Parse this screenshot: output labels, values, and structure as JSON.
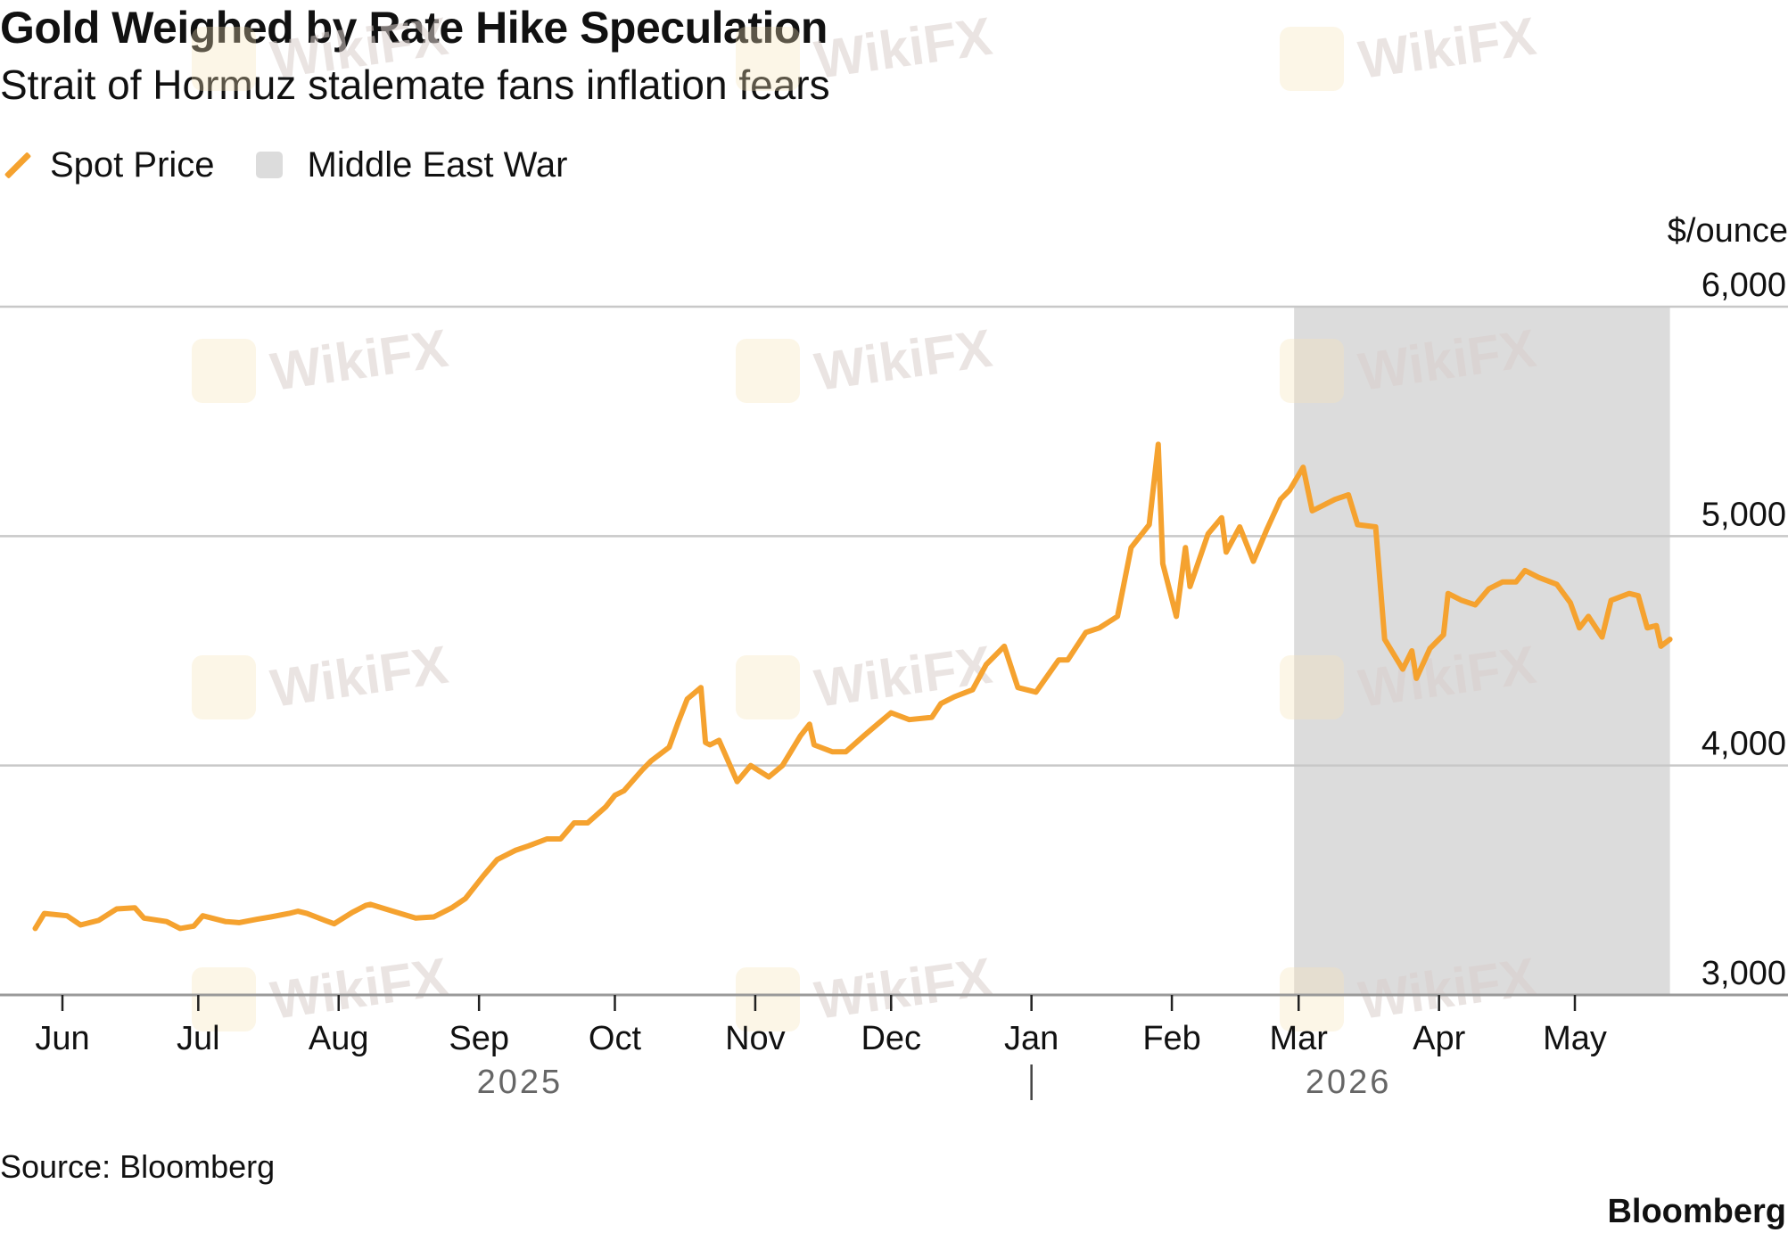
{
  "title": "Gold Weighed by Rate Hike Speculation",
  "subtitle": "Strait of Hormuz stalemate fans inflation fears",
  "legend": {
    "series_label": "Spot Price",
    "shade_label": "Middle East War"
  },
  "source": "Source: Bloomberg",
  "brand": "Bloomberg",
  "watermark": "WikiFX",
  "colors": {
    "series": "#f5a22f",
    "shade": "#dcdcdc",
    "grid": "#c8c8c8",
    "watermark": "#d9cfcc"
  },
  "chart_data": {
    "type": "line",
    "title": "Gold Weighed by Rate Hike Speculation",
    "subtitle": "Strait of Hormuz stalemate fans inflation fears",
    "ylabel": "$/ounce",
    "ylim": [
      3000,
      6000
    ],
    "yticks": [
      {
        "value": 3000,
        "label": "3,000"
      },
      {
        "value": 4000,
        "label": "4,000"
      },
      {
        "value": 5000,
        "label": "5,000"
      },
      {
        "value": 6000,
        "label": "6,000"
      }
    ],
    "xlim": [
      "2025-05-23",
      "2026-05-23"
    ],
    "xticks": [
      {
        "date": "2025-06-01",
        "label": "Jun"
      },
      {
        "date": "2025-07-01",
        "label": "Jul"
      },
      {
        "date": "2025-08-01",
        "label": "Aug"
      },
      {
        "date": "2025-09-01",
        "label": "Sep"
      },
      {
        "date": "2025-10-01",
        "label": "Oct"
      },
      {
        "date": "2025-11-01",
        "label": "Nov"
      },
      {
        "date": "2025-12-01",
        "label": "Dec"
      },
      {
        "date": "2026-01-01",
        "label": "Jan"
      },
      {
        "date": "2026-02-01",
        "label": "Feb"
      },
      {
        "date": "2026-03-01",
        "label": "Mar"
      },
      {
        "date": "2026-04-01",
        "label": "Apr"
      },
      {
        "date": "2026-05-01",
        "label": "May"
      }
    ],
    "year_labels": [
      {
        "label": "2025",
        "date": "2025-09-10"
      },
      {
        "label": "2026",
        "date": "2026-03-12"
      }
    ],
    "year_divider": "2026-01-01",
    "grid": true,
    "legend_position": "top-left",
    "shaded_regions": [
      {
        "name": "Middle East War",
        "start": "2026-02-28",
        "end": "2026-05-22"
      }
    ],
    "series": [
      {
        "name": "Spot Price",
        "points": [
          [
            "2025-05-26",
            3290
          ],
          [
            "2025-05-28",
            3355
          ],
          [
            "2025-06-02",
            3345
          ],
          [
            "2025-06-05",
            3305
          ],
          [
            "2025-06-09",
            3325
          ],
          [
            "2025-06-13",
            3375
          ],
          [
            "2025-06-17",
            3380
          ],
          [
            "2025-06-19",
            3335
          ],
          [
            "2025-06-24",
            3320
          ],
          [
            "2025-06-27",
            3290
          ],
          [
            "2025-06-30",
            3300
          ],
          [
            "2025-07-02",
            3345
          ],
          [
            "2025-07-07",
            3320
          ],
          [
            "2025-07-10",
            3315
          ],
          [
            "2025-07-14",
            3330
          ],
          [
            "2025-07-17",
            3340
          ],
          [
            "2025-07-21",
            3355
          ],
          [
            "2025-07-23",
            3365
          ],
          [
            "2025-07-25",
            3355
          ],
          [
            "2025-07-29",
            3325
          ],
          [
            "2025-07-31",
            3310
          ],
          [
            "2025-08-04",
            3360
          ],
          [
            "2025-08-07",
            3390
          ],
          [
            "2025-08-08",
            3395
          ],
          [
            "2025-08-13",
            3365
          ],
          [
            "2025-08-18",
            3335
          ],
          [
            "2025-08-22",
            3340
          ],
          [
            "2025-08-26",
            3380
          ],
          [
            "2025-08-29",
            3420
          ],
          [
            "2025-09-02",
            3520
          ],
          [
            "2025-09-05",
            3590
          ],
          [
            "2025-09-09",
            3630
          ],
          [
            "2025-09-12",
            3650
          ],
          [
            "2025-09-16",
            3680
          ],
          [
            "2025-09-19",
            3680
          ],
          [
            "2025-09-22",
            3750
          ],
          [
            "2025-09-25",
            3750
          ],
          [
            "2025-09-29",
            3820
          ],
          [
            "2025-10-01",
            3870
          ],
          [
            "2025-10-03",
            3890
          ],
          [
            "2025-10-07",
            3980
          ],
          [
            "2025-10-09",
            4020
          ],
          [
            "2025-10-13",
            4080
          ],
          [
            "2025-10-15",
            4190
          ],
          [
            "2025-10-17",
            4290
          ],
          [
            "2025-10-20",
            4340
          ],
          [
            "2025-10-21",
            4100
          ],
          [
            "2025-10-22",
            4090
          ],
          [
            "2025-10-24",
            4110
          ],
          [
            "2025-10-28",
            3930
          ],
          [
            "2025-10-31",
            4000
          ],
          [
            "2025-11-04",
            3950
          ],
          [
            "2025-11-07",
            4000
          ],
          [
            "2025-11-11",
            4130
          ],
          [
            "2025-11-13",
            4180
          ],
          [
            "2025-11-14",
            4090
          ],
          [
            "2025-11-18",
            4060
          ],
          [
            "2025-11-21",
            4060
          ],
          [
            "2025-11-25",
            4130
          ],
          [
            "2025-11-28",
            4180
          ],
          [
            "2025-12-01",
            4230
          ],
          [
            "2025-12-05",
            4200
          ],
          [
            "2025-12-10",
            4210
          ],
          [
            "2025-12-12",
            4270
          ],
          [
            "2025-12-15",
            4300
          ],
          [
            "2025-12-19",
            4330
          ],
          [
            "2025-12-22",
            4440
          ],
          [
            "2025-12-26",
            4520
          ],
          [
            "2025-12-29",
            4340
          ],
          [
            "2026-01-02",
            4320
          ],
          [
            "2026-01-07",
            4460
          ],
          [
            "2026-01-09",
            4460
          ],
          [
            "2026-01-13",
            4580
          ],
          [
            "2026-01-16",
            4600
          ],
          [
            "2026-01-20",
            4650
          ],
          [
            "2026-01-23",
            4950
          ],
          [
            "2026-01-27",
            5050
          ],
          [
            "2026-01-29",
            5400
          ],
          [
            "2026-01-30",
            4880
          ],
          [
            "2026-02-02",
            4650
          ],
          [
            "2026-02-04",
            4950
          ],
          [
            "2026-02-05",
            4780
          ],
          [
            "2026-02-09",
            5010
          ],
          [
            "2026-02-12",
            5080
          ],
          [
            "2026-02-13",
            4930
          ],
          [
            "2026-02-16",
            5040
          ],
          [
            "2026-02-19",
            4890
          ],
          [
            "2026-02-22",
            5030
          ],
          [
            "2026-02-25",
            5160
          ],
          [
            "2026-02-27",
            5200
          ],
          [
            "2026-03-02",
            5300
          ],
          [
            "2026-03-04",
            5110
          ],
          [
            "2026-03-06",
            5130
          ],
          [
            "2026-03-09",
            5160
          ],
          [
            "2026-03-12",
            5180
          ],
          [
            "2026-03-14",
            5050
          ],
          [
            "2026-03-18",
            5040
          ],
          [
            "2026-03-20",
            4550
          ],
          [
            "2026-03-24",
            4420
          ],
          [
            "2026-03-26",
            4500
          ],
          [
            "2026-03-27",
            4380
          ],
          [
            "2026-03-30",
            4510
          ],
          [
            "2026-04-02",
            4570
          ],
          [
            "2026-04-03",
            4750
          ],
          [
            "2026-04-06",
            4720
          ],
          [
            "2026-04-09",
            4700
          ],
          [
            "2026-04-12",
            4770
          ],
          [
            "2026-04-15",
            4800
          ],
          [
            "2026-04-18",
            4800
          ],
          [
            "2026-04-20",
            4850
          ],
          [
            "2026-04-23",
            4820
          ],
          [
            "2026-04-27",
            4790
          ],
          [
            "2026-04-30",
            4710
          ],
          [
            "2026-05-02",
            4600
          ],
          [
            "2026-05-04",
            4650
          ],
          [
            "2026-05-07",
            4560
          ],
          [
            "2026-05-09",
            4720
          ],
          [
            "2026-05-13",
            4750
          ],
          [
            "2026-05-15",
            4740
          ],
          [
            "2026-05-17",
            4600
          ],
          [
            "2026-05-19",
            4610
          ],
          [
            "2026-05-20",
            4520
          ],
          [
            "2026-05-22",
            4550
          ]
        ]
      }
    ]
  }
}
